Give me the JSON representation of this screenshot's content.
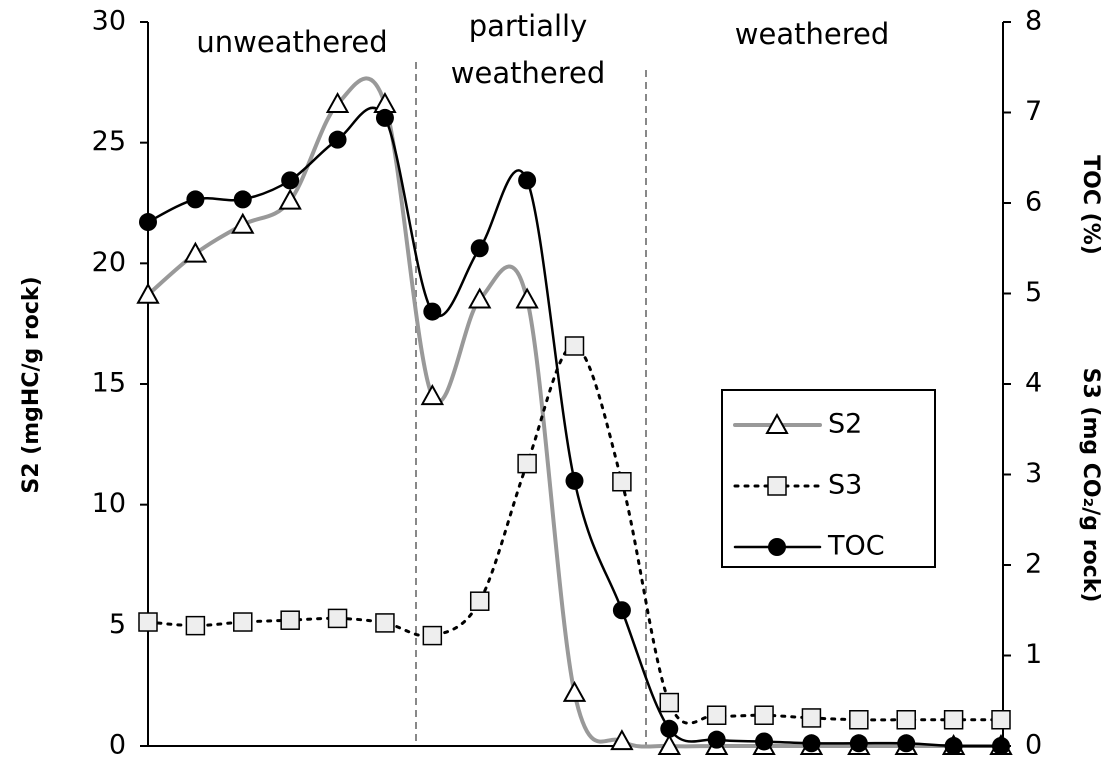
{
  "chart_data": {
    "type": "line",
    "categories": [
      null,
      null,
      null,
      null,
      null,
      null,
      null,
      null,
      null,
      null,
      null,
      null,
      null,
      null,
      null,
      null,
      null,
      null,
      null
    ],
    "y_label": "S2 (mgHC/g rock)",
    "y2_labels": [
      "TOC (%)",
      "S3 (mg CO₂/g rock)"
    ],
    "region_labels": [
      [
        "unweathered"
      ],
      [
        "partially",
        "weathered"
      ],
      [
        "weathered"
      ]
    ],
    "ylim": [
      0,
      30
    ],
    "yticks": [
      0,
      5,
      10,
      15,
      20,
      25,
      30
    ],
    "y2lim": [
      0,
      8
    ],
    "y2ticks": [
      0,
      1,
      2,
      3,
      4,
      5,
      6,
      7,
      8
    ],
    "legend": "right",
    "series": [
      {
        "name": "S2",
        "color": "#999999",
        "marker": "triangle",
        "style": "solid",
        "values": [
          18.7,
          20.4,
          21.6,
          22.6,
          26.6,
          26.6,
          14.5,
          18.5,
          18.5,
          2.2,
          0.2,
          0,
          0,
          0,
          0,
          0,
          0,
          0,
          0
        ]
      },
      {
        "name": "S3",
        "color": "#000000",
        "marker": "square",
        "style": "dotted",
        "axis": "y2",
        "values": [
          1.37,
          1.33,
          1.37,
          1.39,
          1.41,
          1.36,
          1.22,
          1.6,
          3.12,
          4.42,
          2.92,
          0.48,
          0.34,
          0.34,
          0.31,
          0.29,
          0.29,
          0.29,
          0.29
        ]
      },
      {
        "name": "TOC",
        "color": "#000000",
        "marker": "circle",
        "style": "solid",
        "axis": "y2",
        "values": [
          5.79,
          6.04,
          6.04,
          6.25,
          6.7,
          6.94,
          4.8,
          5.5,
          6.25,
          2.93,
          1.5,
          0.19,
          0.07,
          0.05,
          0.03,
          0.03,
          0.03,
          0,
          0
        ]
      }
    ]
  }
}
